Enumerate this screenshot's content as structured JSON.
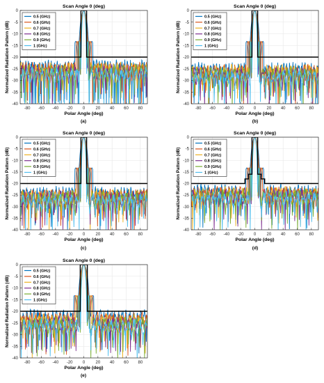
{
  "figure": {
    "panel_labels": [
      "(a)",
      "(b)",
      "(c)",
      "(d)",
      "(e)"
    ]
  },
  "colors": {
    "series": [
      "#0072BD",
      "#D95319",
      "#EDB120",
      "#7E2F8E",
      "#77AC30",
      "#4DBEEE"
    ],
    "mask": "#000000",
    "grid": "#e6e6e6"
  },
  "chart_data": [
    {
      "type": "line",
      "title": "Scan Angle 0 (deg)",
      "xlabel": "Polar Angle (deg)",
      "ylabel": "Normalized Radiation Pattern (dB)",
      "xlim": [
        -90,
        90
      ],
      "ylim": [
        -40,
        0
      ],
      "xticks": [
        -80,
        -60,
        -40,
        -20,
        0,
        20,
        40,
        60,
        80
      ],
      "yticks": [
        0,
        -5,
        -10,
        -15,
        -20,
        -25,
        -30,
        -35,
        -40
      ],
      "grid": true,
      "legend_position": "top-left",
      "series": [
        {
          "name": "0.5 (GHz)",
          "mainlobe_halfwidth": 7,
          "sidelobe_mean": -26
        },
        {
          "name": "0.6 (GHz)",
          "mainlobe_halfwidth": 6,
          "sidelobe_mean": -27
        },
        {
          "name": "0.7 (GHz)",
          "mainlobe_halfwidth": 5,
          "sidelobe_mean": -27
        },
        {
          "name": "0.8 (GHz)",
          "mainlobe_halfwidth": 4.5,
          "sidelobe_mean": -28
        },
        {
          "name": "0.9 (GHz)",
          "mainlobe_halfwidth": 4,
          "sidelobe_mean": -28
        },
        {
          "name": "1 (GHz)",
          "mainlobe_halfwidth": 3.5,
          "sidelobe_mean": -29
        }
      ],
      "mask": {
        "x": [
          -90,
          -4,
          -4,
          4,
          4,
          90
        ],
        "y": [
          -20,
          -20,
          0,
          0,
          -20,
          -20
        ]
      }
    },
    {
      "type": "line",
      "title": "Scan Angle 0 (deg)",
      "xlabel": "Polar Angle (deg)",
      "ylabel": "Normalized Radiation Pattern (dB)",
      "xlim": [
        -90,
        90
      ],
      "ylim": [
        -40,
        0
      ],
      "xticks": [
        -80,
        -60,
        -40,
        -20,
        0,
        20,
        40,
        60,
        80
      ],
      "yticks": [
        0,
        -5,
        -10,
        -15,
        -20,
        -25,
        -30,
        -35,
        -40
      ],
      "grid": true,
      "legend_position": "top-left",
      "series": [
        {
          "name": "0.5 (GHz)",
          "mainlobe_halfwidth": 7,
          "sidelobe_mean": -27
        },
        {
          "name": "0.6 (GHz)",
          "mainlobe_halfwidth": 6,
          "sidelobe_mean": -28
        },
        {
          "name": "0.7 (GHz)",
          "mainlobe_halfwidth": 5,
          "sidelobe_mean": -28
        },
        {
          "name": "0.8 (GHz)",
          "mainlobe_halfwidth": 4.5,
          "sidelobe_mean": -29
        },
        {
          "name": "0.9 (GHz)",
          "mainlobe_halfwidth": 4,
          "sidelobe_mean": -29
        },
        {
          "name": "1 (GHz)",
          "mainlobe_halfwidth": 3.5,
          "sidelobe_mean": -30
        }
      ],
      "mask": {
        "x": [
          -90,
          -4,
          -4,
          4,
          4,
          90
        ],
        "y": [
          -20,
          -20,
          0,
          0,
          -20,
          -20
        ]
      }
    },
    {
      "type": "line",
      "title": "Scan Angle 0 (deg)",
      "xlabel": "Polar Angle (deg)",
      "ylabel": "Normalized Radiation Pattern (dB)",
      "xlim": [
        -90,
        90
      ],
      "ylim": [
        -40,
        0
      ],
      "xticks": [
        -80,
        -60,
        -40,
        -20,
        0,
        20,
        40,
        60,
        80
      ],
      "yticks": [
        0,
        -5,
        -10,
        -15,
        -20,
        -25,
        -30,
        -35,
        -40
      ],
      "grid": true,
      "legend_position": "top-left",
      "series": [
        {
          "name": "0.5 (GHz)",
          "mainlobe_halfwidth": 7,
          "sidelobe_mean": -26
        },
        {
          "name": "0.6 (GHz)",
          "mainlobe_halfwidth": 6,
          "sidelobe_mean": -27
        },
        {
          "name": "0.7 (GHz)",
          "mainlobe_halfwidth": 5,
          "sidelobe_mean": -27
        },
        {
          "name": "0.8 (GHz)",
          "mainlobe_halfwidth": 4.5,
          "sidelobe_mean": -28
        },
        {
          "name": "0.9 (GHz)",
          "mainlobe_halfwidth": 4,
          "sidelobe_mean": -28
        },
        {
          "name": "1 (GHz)",
          "mainlobe_halfwidth": 3.5,
          "sidelobe_mean": -29
        }
      ],
      "mask": {
        "x": [
          -90,
          -4,
          -4,
          4,
          4,
          90
        ],
        "y": [
          -20,
          -20,
          0,
          0,
          -20,
          -20
        ]
      }
    },
    {
      "type": "line",
      "title": "Scan Angle 0 (deg)",
      "xlabel": "Polar Angle (deg)",
      "ylabel": "Normalized Radiation Pattern (dB)",
      "xlim": [
        -90,
        90
      ],
      "ylim": [
        -40,
        0
      ],
      "xticks": [
        -80,
        -60,
        -40,
        -20,
        0,
        20,
        40,
        60,
        80
      ],
      "yticks": [
        0,
        -5,
        -10,
        -15,
        -20,
        -25,
        -30,
        -35,
        -40
      ],
      "grid": true,
      "legend_position": "top-left",
      "series": [
        {
          "name": "0.5 (GHz)",
          "mainlobe_halfwidth": 7,
          "sidelobe_mean": -25
        },
        {
          "name": "0.6 (GHz)",
          "mainlobe_halfwidth": 6,
          "sidelobe_mean": -26
        },
        {
          "name": "0.7 (GHz)",
          "mainlobe_halfwidth": 5,
          "sidelobe_mean": -26
        },
        {
          "name": "0.8 (GHz)",
          "mainlobe_halfwidth": 4.5,
          "sidelobe_mean": -27
        },
        {
          "name": "0.9 (GHz)",
          "mainlobe_halfwidth": 4,
          "sidelobe_mean": -27
        },
        {
          "name": "1 (GHz)",
          "mainlobe_halfwidth": 3.5,
          "sidelobe_mean": -28
        }
      ],
      "mask": {
        "x": [
          -90,
          -14,
          -14,
          -9,
          -9,
          -4,
          -4,
          4,
          4,
          9,
          9,
          14,
          14,
          90
        ],
        "y": [
          -20,
          -20,
          -18,
          -18,
          -16,
          -16,
          0,
          0,
          -16,
          -16,
          -18,
          -18,
          -20,
          -20
        ]
      }
    },
    {
      "type": "line",
      "title": "Scan Angle 0 (deg)",
      "xlabel": "Polar Angle (deg)",
      "ylabel": "Normalized Radiation Pattern (dB)",
      "xlim": [
        -90,
        90
      ],
      "ylim": [
        -40,
        0
      ],
      "xticks": [
        -80,
        -60,
        -40,
        -20,
        0,
        20,
        40,
        60,
        80
      ],
      "yticks": [
        0,
        -5,
        -10,
        -15,
        -20,
        -25,
        -30,
        -35,
        -40
      ],
      "grid": true,
      "legend_position": "top-left",
      "series": [
        {
          "name": "0.5 (GHz)",
          "mainlobe_halfwidth": 8,
          "sidelobe_mean": -24
        },
        {
          "name": "0.6 (GHz)",
          "mainlobe_halfwidth": 7,
          "sidelobe_mean": -25
        },
        {
          "name": "0.7 (GHz)",
          "mainlobe_halfwidth": 6,
          "sidelobe_mean": -26
        },
        {
          "name": "0.8 (GHz)",
          "mainlobe_halfwidth": 5,
          "sidelobe_mean": -27
        },
        {
          "name": "0.9 (GHz)",
          "mainlobe_halfwidth": 4.5,
          "sidelobe_mean": -27
        },
        {
          "name": "1 (GHz)",
          "mainlobe_halfwidth": 4,
          "sidelobe_mean": -28
        }
      ],
      "mask": {
        "x": [
          -90,
          -5,
          -5,
          5,
          5,
          90
        ],
        "y": [
          -20,
          -20,
          0,
          0,
          -20,
          -20
        ]
      }
    }
  ]
}
